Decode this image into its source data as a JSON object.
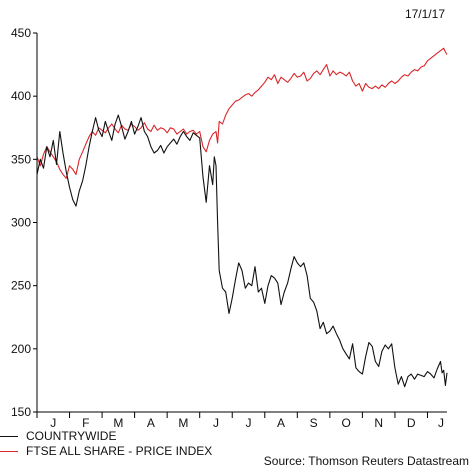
{
  "date_label": "17/1/17",
  "source": "Source: Thomson Reuters Datastream",
  "chart_data": {
    "type": "line",
    "ylim": [
      150,
      450
    ],
    "yticks": [
      150,
      200,
      250,
      300,
      350,
      400,
      450
    ],
    "x_range": [
      0,
      12.6
    ],
    "x_months": [
      "J",
      "F",
      "M",
      "A",
      "M",
      "J",
      "J",
      "A",
      "S",
      "O",
      "N",
      "D",
      "J"
    ],
    "legend_placement": "bottom-left",
    "grid": false,
    "series": [
      {
        "name": "COUNTRYWIDE",
        "color": "#111111",
        "points": [
          [
            0.0,
            338
          ],
          [
            0.1,
            350
          ],
          [
            0.2,
            343
          ],
          [
            0.3,
            360
          ],
          [
            0.4,
            352
          ],
          [
            0.5,
            365
          ],
          [
            0.6,
            346
          ],
          [
            0.7,
            372
          ],
          [
            0.8,
            355
          ],
          [
            0.9,
            340
          ],
          [
            1.0,
            328
          ],
          [
            1.1,
            318
          ],
          [
            1.2,
            313
          ],
          [
            1.3,
            325
          ],
          [
            1.4,
            333
          ],
          [
            1.5,
            345
          ],
          [
            1.6,
            360
          ],
          [
            1.7,
            372
          ],
          [
            1.8,
            383
          ],
          [
            1.9,
            373
          ],
          [
            2.0,
            368
          ],
          [
            2.1,
            380
          ],
          [
            2.2,
            372
          ],
          [
            2.3,
            365
          ],
          [
            2.4,
            378
          ],
          [
            2.5,
            385
          ],
          [
            2.6,
            376
          ],
          [
            2.7,
            366
          ],
          [
            2.8,
            372
          ],
          [
            2.9,
            380
          ],
          [
            3.0,
            370
          ],
          [
            3.1,
            376
          ],
          [
            3.2,
            383
          ],
          [
            3.3,
            372
          ],
          [
            3.4,
            368
          ],
          [
            3.5,
            360
          ],
          [
            3.6,
            355
          ],
          [
            3.7,
            357
          ],
          [
            3.8,
            361
          ],
          [
            3.9,
            355
          ],
          [
            4.0,
            360
          ],
          [
            4.1,
            363
          ],
          [
            4.2,
            366
          ],
          [
            4.3,
            362
          ],
          [
            4.4,
            368
          ],
          [
            4.5,
            372
          ],
          [
            4.6,
            368
          ],
          [
            4.7,
            365
          ],
          [
            4.8,
            371
          ],
          [
            4.9,
            369
          ],
          [
            5.0,
            367
          ],
          [
            5.1,
            336
          ],
          [
            5.2,
            316
          ],
          [
            5.3,
            345
          ],
          [
            5.4,
            330
          ],
          [
            5.45,
            352
          ],
          [
            5.5,
            345
          ],
          [
            5.55,
            300
          ],
          [
            5.6,
            262
          ],
          [
            5.7,
            248
          ],
          [
            5.8,
            245
          ],
          [
            5.9,
            228
          ],
          [
            6.0,
            240
          ],
          [
            6.1,
            255
          ],
          [
            6.2,
            268
          ],
          [
            6.3,
            262
          ],
          [
            6.4,
            248
          ],
          [
            6.5,
            252
          ],
          [
            6.6,
            250
          ],
          [
            6.7,
            265
          ],
          [
            6.8,
            245
          ],
          [
            6.9,
            248
          ],
          [
            7.0,
            236
          ],
          [
            7.1,
            250
          ],
          [
            7.2,
            258
          ],
          [
            7.3,
            256
          ],
          [
            7.4,
            252
          ],
          [
            7.5,
            235
          ],
          [
            7.6,
            245
          ],
          [
            7.7,
            252
          ],
          [
            7.8,
            263
          ],
          [
            7.9,
            273
          ],
          [
            8.0,
            268
          ],
          [
            8.1,
            265
          ],
          [
            8.2,
            268
          ],
          [
            8.3,
            258
          ],
          [
            8.4,
            240
          ],
          [
            8.5,
            237
          ],
          [
            8.6,
            230
          ],
          [
            8.7,
            216
          ],
          [
            8.8,
            221
          ],
          [
            8.9,
            212
          ],
          [
            9.0,
            214
          ],
          [
            9.1,
            218
          ],
          [
            9.2,
            212
          ],
          [
            9.3,
            207
          ],
          [
            9.4,
            200
          ],
          [
            9.5,
            196
          ],
          [
            9.6,
            192
          ],
          [
            9.7,
            204
          ],
          [
            9.8,
            185
          ],
          [
            9.9,
            182
          ],
          [
            10.0,
            180
          ],
          [
            10.1,
            194
          ],
          [
            10.2,
            205
          ],
          [
            10.3,
            202
          ],
          [
            10.4,
            190
          ],
          [
            10.5,
            186
          ],
          [
            10.6,
            198
          ],
          [
            10.7,
            203
          ],
          [
            10.8,
            200
          ],
          [
            10.9,
            204
          ],
          [
            11.0,
            185
          ],
          [
            11.1,
            172
          ],
          [
            11.2,
            178
          ],
          [
            11.3,
            170
          ],
          [
            11.4,
            178
          ],
          [
            11.5,
            180
          ],
          [
            11.6,
            176
          ],
          [
            11.7,
            180
          ],
          [
            11.8,
            179
          ],
          [
            11.9,
            178
          ],
          [
            12.0,
            182
          ],
          [
            12.1,
            180
          ],
          [
            12.2,
            177
          ],
          [
            12.3,
            184
          ],
          [
            12.4,
            190
          ],
          [
            12.45,
            181
          ],
          [
            12.5,
            183
          ],
          [
            12.55,
            171
          ],
          [
            12.6,
            181
          ]
        ]
      },
      {
        "name": "FTSE ALL SHARE - PRICE INDEX",
        "color": "#d9262a",
        "points": [
          [
            0.0,
            352
          ],
          [
            0.1,
            345
          ],
          [
            0.2,
            354
          ],
          [
            0.3,
            360
          ],
          [
            0.4,
            356
          ],
          [
            0.5,
            352
          ],
          [
            0.6,
            348
          ],
          [
            0.7,
            342
          ],
          [
            0.8,
            338
          ],
          [
            0.9,
            335
          ],
          [
            1.0,
            345
          ],
          [
            1.1,
            342
          ],
          [
            1.2,
            338
          ],
          [
            1.3,
            350
          ],
          [
            1.4,
            356
          ],
          [
            1.5,
            362
          ],
          [
            1.6,
            368
          ],
          [
            1.7,
            372
          ],
          [
            1.8,
            369
          ],
          [
            1.9,
            375
          ],
          [
            2.0,
            373
          ],
          [
            2.1,
            371
          ],
          [
            2.2,
            375
          ],
          [
            2.3,
            378
          ],
          [
            2.4,
            374
          ],
          [
            2.5,
            371
          ],
          [
            2.6,
            377
          ],
          [
            2.7,
            374
          ],
          [
            2.8,
            373
          ],
          [
            2.9,
            378
          ],
          [
            3.0,
            376
          ],
          [
            3.1,
            373
          ],
          [
            3.2,
            375
          ],
          [
            3.3,
            379
          ],
          [
            3.4,
            374
          ],
          [
            3.5,
            372
          ],
          [
            3.6,
            377
          ],
          [
            3.7,
            373
          ],
          [
            3.8,
            375
          ],
          [
            3.9,
            374
          ],
          [
            4.0,
            371
          ],
          [
            4.1,
            375
          ],
          [
            4.2,
            374
          ],
          [
            4.3,
            370
          ],
          [
            4.4,
            372
          ],
          [
            4.5,
            374
          ],
          [
            4.6,
            370
          ],
          [
            4.7,
            372
          ],
          [
            4.8,
            373
          ],
          [
            4.9,
            370
          ],
          [
            5.0,
            372
          ],
          [
            5.1,
            360
          ],
          [
            5.2,
            356
          ],
          [
            5.3,
            365
          ],
          [
            5.4,
            370
          ],
          [
            5.5,
            372
          ],
          [
            5.55,
            363
          ],
          [
            5.6,
            380
          ],
          [
            5.7,
            378
          ],
          [
            5.8,
            385
          ],
          [
            5.9,
            390
          ],
          [
            6.0,
            393
          ],
          [
            6.1,
            396
          ],
          [
            6.2,
            397
          ],
          [
            6.3,
            399
          ],
          [
            6.4,
            401
          ],
          [
            6.5,
            402
          ],
          [
            6.6,
            400
          ],
          [
            6.7,
            403
          ],
          [
            6.8,
            405
          ],
          [
            6.9,
            408
          ],
          [
            7.0,
            411
          ],
          [
            7.1,
            415
          ],
          [
            7.2,
            413
          ],
          [
            7.3,
            417
          ],
          [
            7.4,
            410
          ],
          [
            7.5,
            415
          ],
          [
            7.6,
            413
          ],
          [
            7.7,
            411
          ],
          [
            7.8,
            414
          ],
          [
            7.9,
            418
          ],
          [
            8.0,
            415
          ],
          [
            8.1,
            416
          ],
          [
            8.2,
            419
          ],
          [
            8.3,
            412
          ],
          [
            8.4,
            414
          ],
          [
            8.5,
            418
          ],
          [
            8.6,
            420
          ],
          [
            8.7,
            417
          ],
          [
            8.8,
            421
          ],
          [
            8.9,
            425
          ],
          [
            9.0,
            416
          ],
          [
            9.1,
            420
          ],
          [
            9.2,
            417
          ],
          [
            9.3,
            419
          ],
          [
            9.4,
            418
          ],
          [
            9.5,
            416
          ],
          [
            9.6,
            419
          ],
          [
            9.7,
            412
          ],
          [
            9.8,
            408
          ],
          [
            9.9,
            410
          ],
          [
            10.0,
            404
          ],
          [
            10.1,
            410
          ],
          [
            10.2,
            407
          ],
          [
            10.3,
            406
          ],
          [
            10.4,
            408
          ],
          [
            10.5,
            406
          ],
          [
            10.6,
            409
          ],
          [
            10.7,
            407
          ],
          [
            10.8,
            410
          ],
          [
            10.9,
            412
          ],
          [
            11.0,
            410
          ],
          [
            11.1,
            412
          ],
          [
            11.2,
            415
          ],
          [
            11.3,
            417
          ],
          [
            11.4,
            416
          ],
          [
            11.5,
            419
          ],
          [
            11.6,
            421
          ],
          [
            11.7,
            420
          ],
          [
            11.8,
            423
          ],
          [
            11.9,
            424
          ],
          [
            12.0,
            428
          ],
          [
            12.1,
            430
          ],
          [
            12.2,
            432
          ],
          [
            12.3,
            434
          ],
          [
            12.4,
            436
          ],
          [
            12.5,
            438
          ],
          [
            12.55,
            435
          ],
          [
            12.6,
            433
          ]
        ]
      }
    ]
  }
}
